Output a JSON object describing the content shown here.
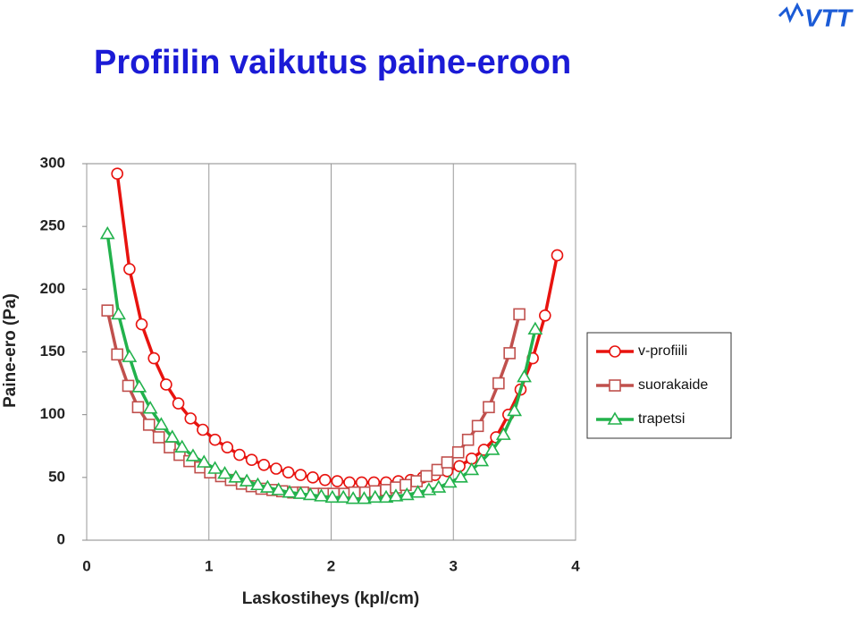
{
  "logo": "VTT",
  "chart_data": {
    "type": "line",
    "title": "Profiilin vaikutus paine-eroon",
    "x_label": "Laskostiheys (kpl/cm)",
    "y_label": "Paine-ero (Pa)",
    "xlim": [
      0,
      4
    ],
    "xticks": [
      0,
      1,
      2,
      3,
      4
    ],
    "ylim": [
      0,
      300
    ],
    "yticks": [
      0,
      50,
      100,
      150,
      200,
      250,
      300
    ],
    "grid": "x",
    "legend": "right",
    "series": [
      {
        "name": "v-profiili",
        "color": "#e8130f",
        "marker": "circle",
        "x": [
          0.25,
          0.35,
          0.45,
          0.55,
          0.65,
          0.75,
          0.85,
          0.95,
          1.05,
          1.15,
          1.25,
          1.35,
          1.45,
          1.55,
          1.65,
          1.75,
          1.85,
          1.95,
          2.05,
          2.15,
          2.25,
          2.35,
          2.45,
          2.55,
          2.65,
          2.75,
          2.85,
          2.95,
          3.05,
          3.15,
          3.25,
          3.35,
          3.45,
          3.55,
          3.65,
          3.75,
          3.85
        ],
        "values": [
          292,
          216,
          172,
          145,
          124,
          109,
          97,
          88,
          80,
          74,
          68,
          64,
          60,
          57,
          54,
          52,
          50,
          48,
          47,
          46,
          46,
          46,
          46,
          47,
          48,
          50,
          52,
          55,
          59,
          65,
          72,
          82,
          100,
          120,
          145,
          179,
          227
        ]
      },
      {
        "name": "suorakaide",
        "color": "#c0504d",
        "marker": "square",
        "x": [
          0.17,
          0.25,
          0.34,
          0.42,
          0.51,
          0.59,
          0.68,
          0.76,
          0.84,
          0.93,
          1.01,
          1.1,
          1.18,
          1.27,
          1.35,
          1.43,
          1.52,
          1.6,
          1.69,
          1.77,
          1.86,
          1.94,
          2.02,
          2.11,
          2.19,
          2.28,
          2.36,
          2.45,
          2.53,
          2.61,
          2.7,
          2.78,
          2.87,
          2.95,
          3.04,
          3.12,
          3.2,
          3.29,
          3.37,
          3.46,
          3.54
        ],
        "values": [
          183,
          148,
          123,
          106,
          92,
          82,
          74,
          68,
          63,
          58,
          54,
          51,
          48,
          45,
          43,
          41,
          40,
          39,
          38,
          38,
          37,
          37,
          37,
          37,
          38,
          38,
          39,
          40,
          42,
          44,
          47,
          51,
          56,
          62,
          70,
          80,
          91,
          106,
          125,
          149,
          180
        ]
      },
      {
        "name": "trapetsi",
        "color": "#22b24c",
        "marker": "triangle",
        "x": [
          0.17,
          0.26,
          0.35,
          0.43,
          0.52,
          0.61,
          0.7,
          0.78,
          0.87,
          0.96,
          1.05,
          1.13,
          1.22,
          1.31,
          1.4,
          1.48,
          1.57,
          1.66,
          1.75,
          1.83,
          1.92,
          2.01,
          2.1,
          2.18,
          2.27,
          2.36,
          2.45,
          2.53,
          2.62,
          2.71,
          2.8,
          2.88,
          2.97,
          3.06,
          3.15,
          3.23,
          3.32,
          3.41,
          3.5,
          3.58,
          3.67
        ],
        "values": [
          244,
          180,
          146,
          122,
          105,
          92,
          82,
          74,
          67,
          62,
          57,
          53,
          50,
          47,
          44,
          42,
          40,
          38,
          37,
          36,
          35,
          34,
          34,
          33,
          33,
          34,
          34,
          35,
          36,
          38,
          40,
          42,
          46,
          50,
          56,
          63,
          72,
          84,
          103,
          130,
          168
        ]
      }
    ]
  }
}
